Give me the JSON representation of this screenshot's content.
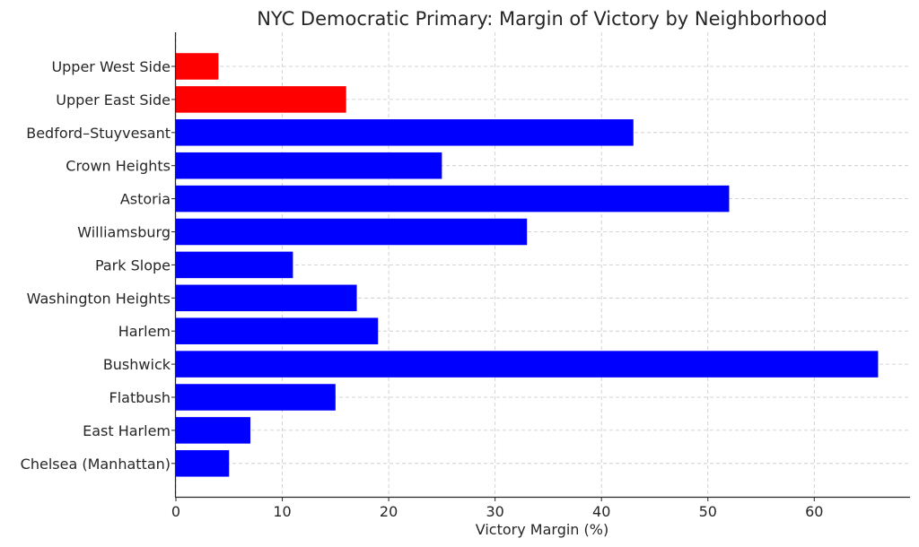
{
  "chart_data": {
    "type": "bar",
    "orientation": "horizontal",
    "title": "NYC Democratic Primary: Margin of Victory by Neighborhood",
    "xlabel": "Victory Margin (%)",
    "ylabel": "",
    "xlim": [
      0,
      69
    ],
    "xticks": [
      0,
      10,
      20,
      30,
      40,
      50,
      60
    ],
    "grid": true,
    "legend": "none",
    "categories": [
      "Upper West Side",
      "Upper East Side",
      "Bedford–Stuyvesant",
      "Crown Heights",
      "Astoria",
      "Williamsburg",
      "Park Slope",
      "Washington Heights",
      "Harlem",
      "Bushwick",
      "Flatbush",
      "East Harlem",
      "Chelsea (Manhattan)"
    ],
    "values": [
      4,
      16,
      43,
      25,
      52,
      33,
      11,
      17,
      19,
      66,
      15,
      7,
      5
    ],
    "bar_colors": [
      "#ff0000",
      "#ff0000",
      "#0000ff",
      "#0000ff",
      "#0000ff",
      "#0000ff",
      "#0000ff",
      "#0000ff",
      "#0000ff",
      "#0000ff",
      "#0000ff",
      "#0000ff",
      "#0000ff"
    ]
  }
}
